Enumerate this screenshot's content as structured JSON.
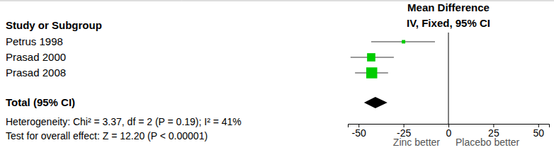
{
  "chart_data": {
    "type": "forest",
    "row_header": "Study or Subgroup",
    "effect_header": "Mean Difference",
    "effect_subheader": "IV, Fixed, 95% CI",
    "categories": [
      "Petrus 1998",
      "Prasad 2000",
      "Prasad 2008"
    ],
    "values": [
      -25,
      -43,
      -42.7
    ],
    "ci_low": [
      -43,
      -54.5,
      -52
    ],
    "ci_high": [
      -7.5,
      -30.4,
      -33.6
    ],
    "weights": [
      6,
      34,
      60
    ],
    "color": "#00cc00",
    "total": {
      "label": "Total (95% CI)",
      "value": -40.7,
      "ci_low": -47,
      "ci_high": -34
    },
    "notes": [
      "Heterogeneity: Chi² = 3.37, df = 2 (P = 0.19); I² = 41%",
      "Test for overall effect: Z = 12.20 (P < 0.00001)"
    ],
    "favours": [
      "Zinc better",
      "Placebo better"
    ],
    "xlim": [
      -56,
      56
    ],
    "xticks": [
      -50,
      -25,
      0,
      25,
      50
    ]
  }
}
